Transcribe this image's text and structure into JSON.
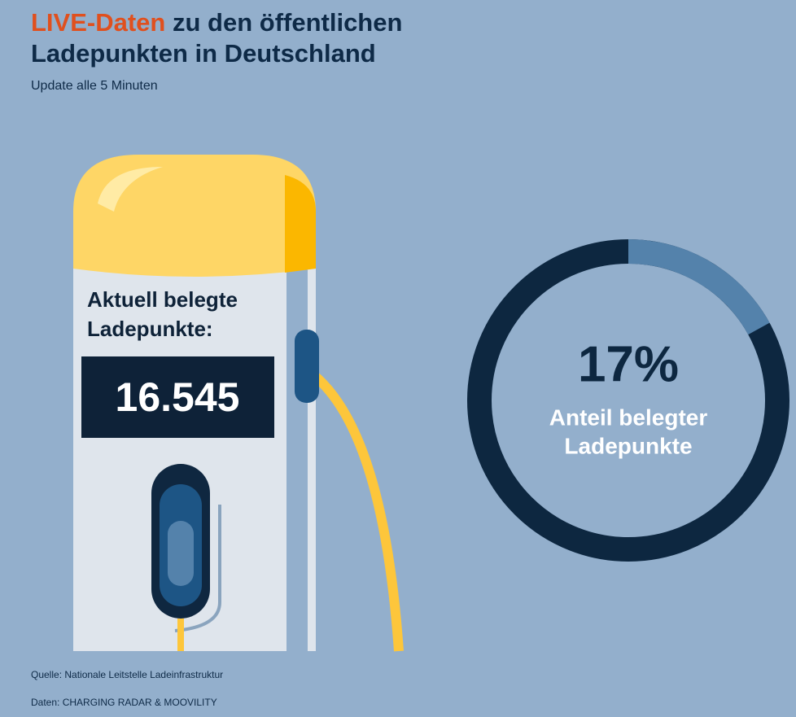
{
  "header": {
    "title_highlight": "LIVE-Daten",
    "title_line1_rest": "zu den öffentlichen",
    "title_line2": "Ladepunkten in Deutschland",
    "subtitle": "Update alle 5 Minuten"
  },
  "counter": {
    "label_line1": "Aktuell belegte",
    "label_line2": "Ladepunkte:",
    "value": "16.545"
  },
  "donut": {
    "value": 17,
    "value_label": "17%",
    "range": [
      0,
      100
    ],
    "caption_line1": "Anteil belegter",
    "caption_line2": "Ladepunkte"
  },
  "footer": {
    "source": "Quelle: Nationale Leitstelle Ladeinfrastruktur",
    "data": "Daten: CHARGING RADAR & MOOVILITY"
  }
}
